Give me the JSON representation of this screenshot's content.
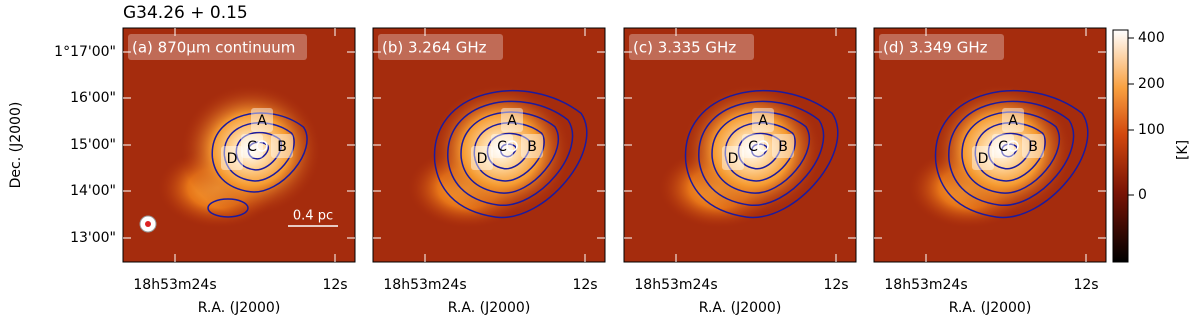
{
  "title": "G34.26 + 0.15",
  "panels": [
    {
      "label": "(a) 870µm continuum"
    },
    {
      "label": "(b) 3.264 GHz"
    },
    {
      "label": "(c) 3.335 GHz"
    },
    {
      "label": "(d) 3.349 GHz"
    }
  ],
  "y_axis": {
    "label": "Dec. (J2000)",
    "ticks": [
      "1°17'00\"",
      "16'00\"",
      "15'00\"",
      "14'00\"",
      "13'00\""
    ]
  },
  "x_axis": {
    "label": "R.A. (J2000)",
    "ticks": [
      "18h53m24s",
      "12s"
    ]
  },
  "colorbar": {
    "label": "[K]",
    "ticks": [
      "400",
      "200",
      "100",
      "0"
    ]
  },
  "sources": [
    "A",
    "B",
    "C",
    "D"
  ],
  "scale_bar": "0.4 pc"
}
